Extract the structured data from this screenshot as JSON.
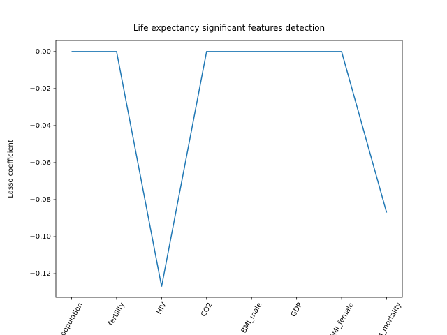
{
  "chart_data": {
    "type": "line",
    "title": "Life expectancy significant features detection",
    "y_label": "Lasso coefficient",
    "categories": [
      "population",
      "fertility",
      "HIV",
      "CO2",
      "BMI_male",
      "GDP",
      "BMI_female",
      "child_mortality"
    ],
    "values": [
      0,
      0,
      -0.127,
      0,
      0,
      0,
      0,
      -0.087
    ],
    "color": "#1f77b4",
    "ylim": [
      -0.1328,
      0.006
    ],
    "yticks": [
      {
        "value": 0,
        "label": "0.00"
      },
      {
        "value": -0.02,
        "label": "−0.02"
      },
      {
        "value": -0.04,
        "label": "−0.04"
      },
      {
        "value": -0.06,
        "label": "−0.06"
      },
      {
        "value": -0.08,
        "label": "−0.08"
      },
      {
        "value": -0.1,
        "label": "−0.10"
      },
      {
        "value": -0.12,
        "label": "−0.12"
      }
    ],
    "grid": false
  }
}
